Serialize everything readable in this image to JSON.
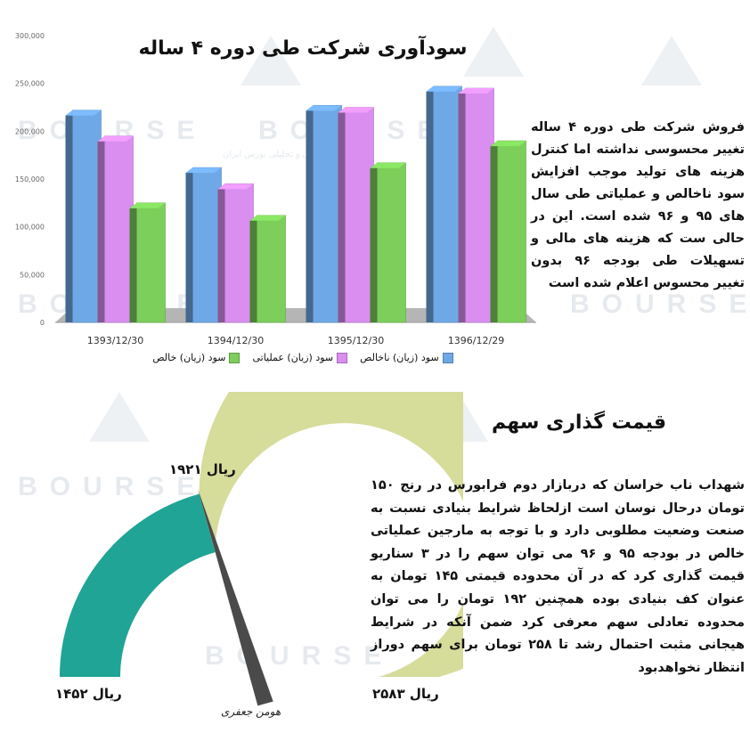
{
  "chart_data": [
    {
      "type": "bar",
      "title": "سودآوری شرکت طی دوره ۴ ساله",
      "categories": [
        "1393/12/30",
        "1394/12/30",
        "1395/12/30",
        "1396/12/29"
      ],
      "series": [
        {
          "name": "سود (زیان) ناخالص",
          "values": [
            222000,
            162000,
            227000,
            247000
          ],
          "color": "#6fa8e6"
        },
        {
          "name": "سود (زیان) عملیاتی",
          "values": [
            195000,
            145000,
            225000,
            245000
          ],
          "color": "#d98ef0"
        },
        {
          "name": "سود (زیان) خالص",
          "values": [
            125000,
            112000,
            167000,
            190000
          ],
          "color": "#7ccf5a"
        }
      ],
      "ylim": [
        0,
        300000
      ],
      "yticks": [
        "0",
        "50,000",
        "100,000",
        "150,000",
        "200,000",
        "250,000",
        "300,000"
      ],
      "legend": "bottom"
    },
    {
      "type": "gauge",
      "title": "قیمت گذاری سهم",
      "min": 1452,
      "max": 2583,
      "value": 1921,
      "min_label": "ریال ۱۴۵۲",
      "max_label": "ریال ۲۵۸۳",
      "value_label": "ریال ۱۹۲۱",
      "colors": {
        "filled": "#1fa495",
        "remaining": "#d6dc9a",
        "needle": "#4a4a4a"
      }
    }
  ],
  "text": {
    "desc1": "فروش شرکت طی دوره ۴ ساله تغییر محسوسی نداشته اما کنترل هزینه های تولید موجب افزایش سود ناخالص و عملیاتی طی سال های ۹۵ و ۹۶ شده است. این در حالی ست که هزینه های مالی و تسهیلات طی بودجه ۹۶ بدون تغییر محسوس اعلام شده است",
    "desc2": "شهداب ناب خراسان که دربازار دوم فرابورس در رنج ۱۵۰ تومان درحال نوسان است ازلحاظ شرایط بنیادی نسبت به صنعت وضعیت مطلوبی دارد و با توجه به مارجین عملیاتی خالص در بودجه ۹۵ و ۹۶ می توان سهم را در ۳ سناریو قیمت گذاری کرد که در آن محدوده قیمتی ۱۴۵ تومان به عنوان کف بنیادی بوده همچنین ۱۹۲ تومان را می توان محدوده تعادلی سهم معرفی کرد ضمن آنکه در شرایط هیجانی مثبت احتمال رشد تا ۲۵۸ تومان برای سهم دوراز انتظار نخواهدبود",
    "signature": "هومن جعفری"
  },
  "watermark": {
    "brand": "BOURSE",
    "tagline": "پایگاه اطلاع رسانی و تحلیلی بورس ایران"
  }
}
